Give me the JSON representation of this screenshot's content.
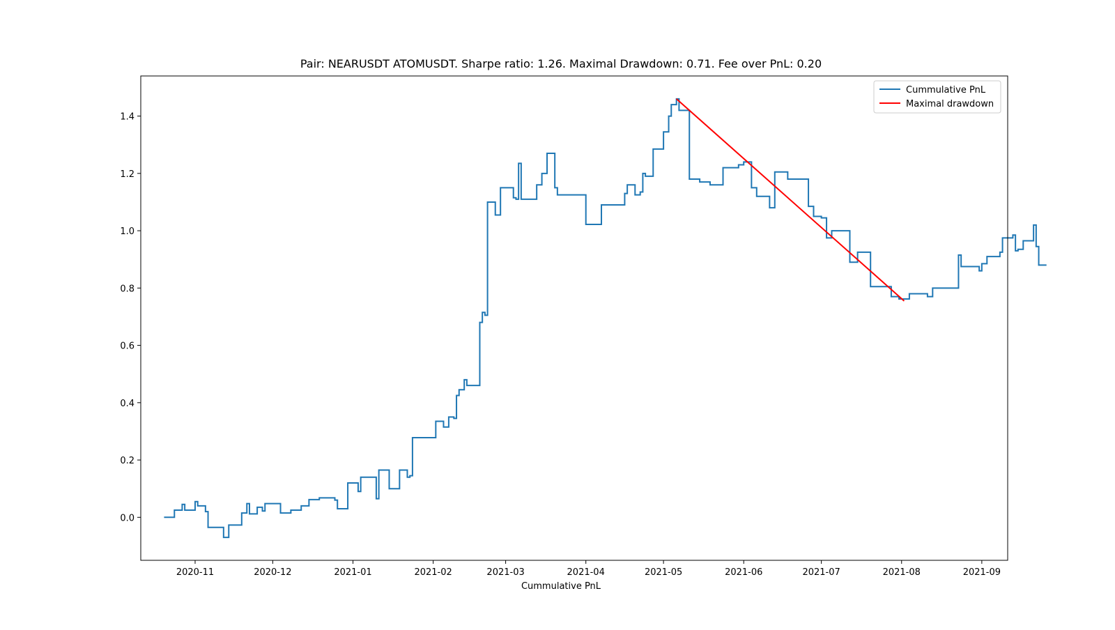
{
  "chart_data": {
    "type": "line",
    "title": "Pair: NEARUSDT ATOMUSDT. Sharpe ratio: 1.26. Maximal Drawdown: 0.71. Fee over PnL: 0.20",
    "xlabel": "Cummulative PnL",
    "ylabel": "",
    "xlim": [
      "2020-10-11",
      "2021-09-11"
    ],
    "ylim": [
      -0.15,
      1.54
    ],
    "x_ticks": [
      "2020-11",
      "2020-12",
      "2021-01",
      "2021-02",
      "2021-03",
      "2021-04",
      "2021-05",
      "2021-06",
      "2021-07",
      "2021-08",
      "2021-09"
    ],
    "y_ticks": [
      "0.0",
      "0.2",
      "0.4",
      "0.6",
      "0.8",
      "1.0",
      "1.2",
      "1.4"
    ],
    "grid": false,
    "legend_position": "top-right",
    "series": [
      {
        "name": "Cummulative PnL",
        "color": "#1f77b4",
        "step": true,
        "points": [
          [
            "2020-10-20",
            0.0
          ],
          [
            "2020-10-24",
            0.025
          ],
          [
            "2020-10-27",
            0.045
          ],
          [
            "2020-10-28",
            0.025
          ],
          [
            "2020-11-01",
            0.055
          ],
          [
            "2020-11-02",
            0.04
          ],
          [
            "2020-11-05",
            0.02
          ],
          [
            "2020-11-06",
            -0.035
          ],
          [
            "2020-11-12",
            -0.07
          ],
          [
            "2020-11-14",
            -0.027
          ],
          [
            "2020-11-19",
            0.015
          ],
          [
            "2020-11-21",
            0.048
          ],
          [
            "2020-11-22",
            0.012
          ],
          [
            "2020-11-25",
            0.035
          ],
          [
            "2020-11-27",
            0.022
          ],
          [
            "2020-11-28",
            0.048
          ],
          [
            "2020-12-04",
            0.015
          ],
          [
            "2020-12-08",
            0.025
          ],
          [
            "2020-12-12",
            0.04
          ],
          [
            "2020-12-15",
            0.062
          ],
          [
            "2020-12-19",
            0.068
          ],
          [
            "2020-12-25",
            0.06
          ],
          [
            "2020-12-26",
            0.03
          ],
          [
            "2020-12-30",
            0.12
          ],
          [
            "2021-01-03",
            0.09
          ],
          [
            "2021-01-04",
            0.14
          ],
          [
            "2021-01-10",
            0.065
          ],
          [
            "2021-01-11",
            0.165
          ],
          [
            "2021-01-15",
            0.1
          ],
          [
            "2021-01-19",
            0.165
          ],
          [
            "2021-01-22",
            0.14
          ],
          [
            "2021-01-23",
            0.145
          ],
          [
            "2021-01-24",
            0.278
          ],
          [
            "2021-02-02",
            0.335
          ],
          [
            "2021-02-05",
            0.315
          ],
          [
            "2021-02-07",
            0.35
          ],
          [
            "2021-02-09",
            0.345
          ],
          [
            "2021-02-10",
            0.425
          ],
          [
            "2021-02-11",
            0.445
          ],
          [
            "2021-02-13",
            0.48
          ],
          [
            "2021-02-14",
            0.46
          ],
          [
            "2021-02-19",
            0.68
          ],
          [
            "2021-02-20",
            0.715
          ],
          [
            "2021-02-21",
            0.705
          ],
          [
            "2021-02-22",
            1.1
          ],
          [
            "2021-02-25",
            1.055
          ],
          [
            "2021-02-27",
            1.15
          ],
          [
            "2021-03-04",
            1.115
          ],
          [
            "2021-03-05",
            1.11
          ],
          [
            "2021-03-06",
            1.235
          ],
          [
            "2021-03-07",
            1.11
          ],
          [
            "2021-03-13",
            1.16
          ],
          [
            "2021-03-15",
            1.2
          ],
          [
            "2021-03-17",
            1.27
          ],
          [
            "2021-03-20",
            1.15
          ],
          [
            "2021-03-21",
            1.125
          ],
          [
            "2021-03-26",
            1.125
          ],
          [
            "2021-04-01",
            1.022
          ],
          [
            "2021-04-07",
            1.09
          ],
          [
            "2021-04-16",
            1.13
          ],
          [
            "2021-04-17",
            1.16
          ],
          [
            "2021-04-20",
            1.125
          ],
          [
            "2021-04-22",
            1.135
          ],
          [
            "2021-04-23",
            1.2
          ],
          [
            "2021-04-24",
            1.19
          ],
          [
            "2021-04-27",
            1.285
          ],
          [
            "2021-05-01",
            1.345
          ],
          [
            "2021-05-03",
            1.4
          ],
          [
            "2021-05-04",
            1.44
          ],
          [
            "2021-05-06",
            1.46
          ],
          [
            "2021-05-07",
            1.42
          ],
          [
            "2021-05-11",
            1.18
          ],
          [
            "2021-05-15",
            1.17
          ],
          [
            "2021-05-19",
            1.16
          ],
          [
            "2021-05-24",
            1.22
          ],
          [
            "2021-05-30",
            1.23
          ],
          [
            "2021-06-01",
            1.24
          ],
          [
            "2021-06-04",
            1.15
          ],
          [
            "2021-06-06",
            1.12
          ],
          [
            "2021-06-11",
            1.08
          ],
          [
            "2021-06-13",
            1.205
          ],
          [
            "2021-06-18",
            1.18
          ],
          [
            "2021-06-26",
            1.085
          ],
          [
            "2021-06-28",
            1.05
          ],
          [
            "2021-07-01",
            1.045
          ],
          [
            "2021-07-03",
            0.975
          ],
          [
            "2021-07-05",
            1.0
          ],
          [
            "2021-07-12",
            0.89
          ],
          [
            "2021-07-15",
            0.925
          ],
          [
            "2021-07-20",
            0.805
          ],
          [
            "2021-07-28",
            0.77
          ],
          [
            "2021-07-31",
            0.762
          ],
          [
            "2021-08-04",
            0.78
          ],
          [
            "2021-08-11",
            0.77
          ],
          [
            "2021-08-13",
            0.8
          ],
          [
            "2021-08-23",
            0.915
          ],
          [
            "2021-08-24",
            0.875
          ],
          [
            "2021-08-31",
            0.86
          ],
          [
            "2021-09-01",
            0.885
          ],
          [
            "2021-09-03",
            0.91
          ],
          [
            "2021-09-08",
            0.925
          ],
          [
            "2021-09-09",
            0.975
          ],
          [
            "2021-09-13",
            0.985
          ],
          [
            "2021-09-14",
            0.93
          ],
          [
            "2021-09-15",
            0.935
          ],
          [
            "2021-09-17",
            0.965
          ],
          [
            "2021-09-21",
            1.02
          ],
          [
            "2021-09-22",
            0.945
          ],
          [
            "2021-09-23",
            0.88
          ],
          [
            "2021-09-26",
            0.88
          ]
        ]
      },
      {
        "name": "Maximal drawdown",
        "color": "#ff0000",
        "step": false,
        "points": [
          [
            "2021-05-06",
            1.46
          ],
          [
            "2021-08-02",
            0.755
          ]
        ]
      }
    ]
  }
}
